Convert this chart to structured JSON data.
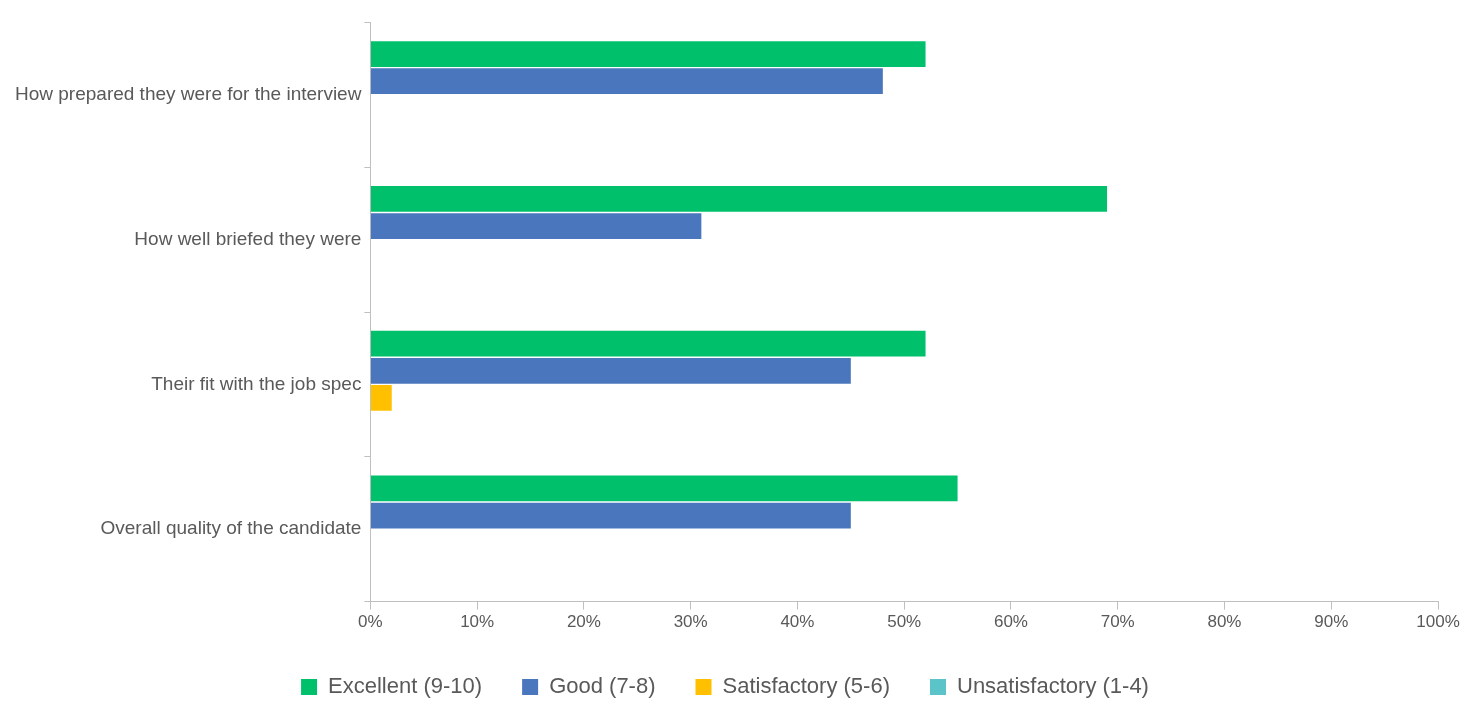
{
  "chart_data": {
    "type": "bar",
    "orientation": "horizontal",
    "categories": [
      "How prepared they were for the interview",
      "How well briefed they were",
      "Their fit with the job spec",
      "Overall quality of the candidate"
    ],
    "series": [
      {
        "name": "Excellent (9-10)",
        "color": "#00c06b",
        "values": [
          52,
          69,
          52,
          55
        ]
      },
      {
        "name": "Good (7-8)",
        "color": "#4a76bd",
        "values": [
          48,
          31,
          45,
          45
        ]
      },
      {
        "name": "Satisfactory (5-6)",
        "color": "#ffc000",
        "values": [
          0,
          0,
          2,
          0
        ]
      },
      {
        "name": "Unsatisfactory (1-4)",
        "color": "#5bc4c8",
        "values": [
          0,
          0,
          0,
          0
        ]
      }
    ],
    "xlim": [
      0,
      100
    ],
    "xticks": [
      {
        "value": 0,
        "label": "0%"
      },
      {
        "value": 10,
        "label": "10%"
      },
      {
        "value": 20,
        "label": "20%"
      },
      {
        "value": 30,
        "label": "30%"
      },
      {
        "value": 40,
        "label": "40%"
      },
      {
        "value": 50,
        "label": "50%"
      },
      {
        "value": 60,
        "label": "60%"
      },
      {
        "value": 70,
        "label": "70%"
      },
      {
        "value": 80,
        "label": "80%"
      },
      {
        "value": 90,
        "label": "90%"
      },
      {
        "value": 100,
        "label": "100%"
      }
    ],
    "grid": false,
    "legend": "bottom"
  }
}
